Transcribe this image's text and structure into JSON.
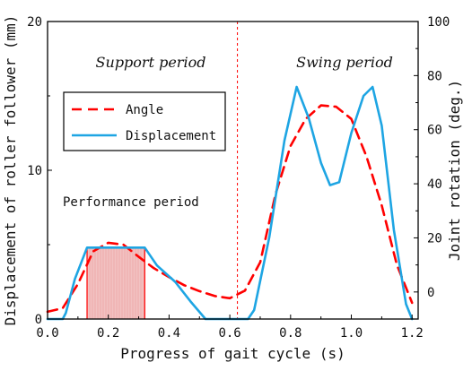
{
  "chart_data": {
    "type": "line",
    "xlabel": "Progress of gait cycle (s)",
    "ylabel_left": "Displacement of roller follower (mm)",
    "ylabel_right": "Joint rotation (deg.)",
    "xlim": [
      0.0,
      1.22
    ],
    "ylim_left": [
      0,
      20
    ],
    "ylim_right": [
      -10,
      100
    ],
    "x_ticks": [
      "0.0",
      "0.2",
      "0.4",
      "0.6",
      "0.8",
      "1.0",
      "1.2"
    ],
    "x_tick_values": [
      0.0,
      0.2,
      0.4,
      0.6,
      0.8,
      1.0,
      1.2
    ],
    "y_ticks_left": [
      "0",
      "10",
      "20"
    ],
    "y_tick_values_left": [
      0,
      10,
      20
    ],
    "y_ticks_right": [
      "0",
      "20",
      "40",
      "60",
      "80",
      "100"
    ],
    "y_tick_values_right": [
      0,
      20,
      40,
      60,
      80,
      100
    ],
    "grid": false,
    "legend_position": "upper-left",
    "series": [
      {
        "name": "Angle",
        "axis": "right",
        "style": "dashed",
        "color": "#ff0000",
        "x": [
          0.0,
          0.05,
          0.1,
          0.15,
          0.2,
          0.25,
          0.3,
          0.35,
          0.4,
          0.45,
          0.5,
          0.55,
          0.6,
          0.65,
          0.7,
          0.75,
          0.8,
          0.85,
          0.9,
          0.95,
          1.0,
          1.05,
          1.1,
          1.15,
          1.2
        ],
        "y": [
          -7.3,
          -6.0,
          3.0,
          15.0,
          18.2,
          17.5,
          13.0,
          8.8,
          5.5,
          2.5,
          0.3,
          -1.5,
          -2.3,
          0.5,
          11.0,
          36.0,
          54.0,
          64.0,
          69.0,
          68.5,
          64.0,
          50.0,
          32.0,
          10.0,
          -4.0
        ]
      },
      {
        "name": "Displacement",
        "axis": "left",
        "style": "solid",
        "color": "#1ea5e3",
        "x": [
          0.0,
          0.05,
          0.06,
          0.09,
          0.13,
          0.2,
          0.32,
          0.36,
          0.42,
          0.47,
          0.52,
          0.6,
          0.66,
          0.68,
          0.73,
          0.78,
          0.82,
          0.86,
          0.9,
          0.93,
          0.96,
          1.0,
          1.04,
          1.07,
          1.1,
          1.14,
          1.18,
          1.2
        ],
        "y": [
          0.0,
          0.0,
          0.4,
          2.7,
          4.8,
          4.8,
          4.8,
          3.6,
          2.5,
          1.2,
          0.0,
          0.0,
          0.0,
          0.6,
          5.5,
          12.0,
          15.6,
          13.5,
          10.5,
          9.0,
          9.2,
          12.5,
          15.0,
          15.6,
          13.0,
          6.0,
          1.0,
          0.0
        ]
      }
    ],
    "annotations": {
      "support_period": "Support period",
      "swing_period": "Swing period",
      "performance_period": "Performance period",
      "divider_x": 0.625,
      "shaded_range_x": [
        0.13,
        0.32
      ],
      "shaded_top_y_left": 4.8
    }
  },
  "colors": {
    "angle": "#ff0000",
    "displacement": "#1ea5e3",
    "shade": "#f2c2c2",
    "shade_lines": "#e05a5a"
  }
}
